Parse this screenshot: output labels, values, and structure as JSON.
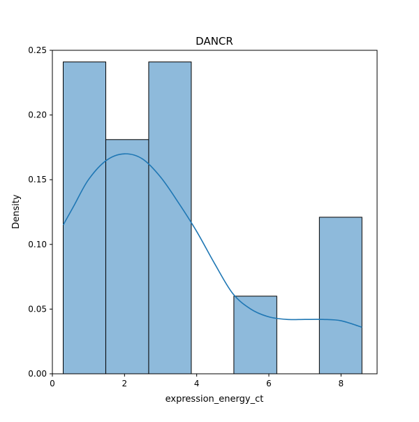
{
  "chart_data": {
    "type": "bar",
    "title": "DANCR",
    "xlabel": "expression_energy_ct",
    "ylabel": "Density",
    "xlim": [
      0,
      9
    ],
    "ylim": [
      0,
      0.25
    ],
    "x_ticks": [
      0,
      2,
      4,
      6,
      8
    ],
    "y_ticks": [
      0.0,
      0.05,
      0.1,
      0.15,
      0.2,
      0.25
    ],
    "x_tick_labels": [
      "0",
      "2",
      "4",
      "6",
      "8"
    ],
    "y_tick_labels": [
      "0.00",
      "0.05",
      "0.10",
      "0.15",
      "0.20",
      "0.25"
    ],
    "grid": false,
    "bins": [
      {
        "x0": 0.3,
        "x1": 1.48,
        "density": 0.241
      },
      {
        "x0": 1.48,
        "x1": 2.67,
        "density": 0.181
      },
      {
        "x0": 2.67,
        "x1": 3.85,
        "density": 0.241
      },
      {
        "x0": 3.85,
        "x1": 5.03,
        "density": 0.0
      },
      {
        "x0": 5.03,
        "x1": 6.22,
        "density": 0.06
      },
      {
        "x0": 6.22,
        "x1": 7.4,
        "density": 0.0
      },
      {
        "x0": 7.4,
        "x1": 8.58,
        "density": 0.121
      }
    ],
    "kde": {
      "x": [
        0.3,
        0.6,
        1.0,
        1.5,
        2.0,
        2.5,
        3.0,
        3.5,
        4.0,
        4.5,
        5.0,
        5.5,
        6.0,
        6.5,
        7.0,
        7.5,
        8.0,
        8.58
      ],
      "y": [
        0.115,
        0.13,
        0.15,
        0.165,
        0.17,
        0.166,
        0.152,
        0.132,
        0.11,
        0.085,
        0.062,
        0.05,
        0.044,
        0.042,
        0.042,
        0.042,
        0.041,
        0.036
      ]
    },
    "colors": {
      "bar_fill": "#8ebadb",
      "bar_edge": "#000000",
      "kde_line": "#1f77b4"
    }
  }
}
